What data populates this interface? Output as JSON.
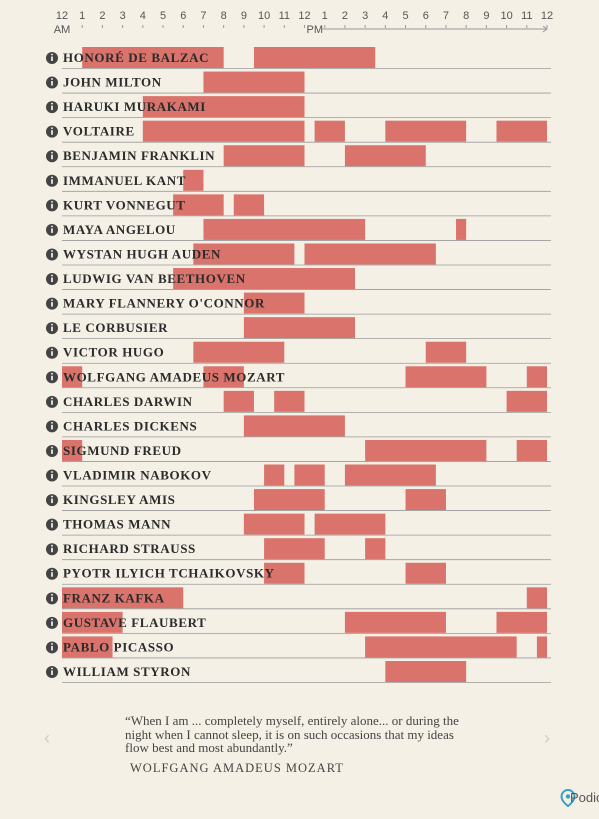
{
  "chart_data": {
    "type": "timeline",
    "color": "#d9736b",
    "xlim": [
      0,
      24
    ],
    "xticks": [
      {
        "value": 0,
        "label": "12"
      },
      {
        "value": 1,
        "label": "1"
      },
      {
        "value": 2,
        "label": "2"
      },
      {
        "value": 3,
        "label": "3"
      },
      {
        "value": 4,
        "label": "4"
      },
      {
        "value": 5,
        "label": "5"
      },
      {
        "value": 6,
        "label": "6"
      },
      {
        "value": 7,
        "label": "7"
      },
      {
        "value": 8,
        "label": "8"
      },
      {
        "value": 9,
        "label": "9"
      },
      {
        "value": 10,
        "label": "10"
      },
      {
        "value": 11,
        "label": "11"
      },
      {
        "value": 12,
        "label": "12"
      },
      {
        "value": 13,
        "label": "1"
      },
      {
        "value": 14,
        "label": "2"
      },
      {
        "value": 15,
        "label": "3"
      },
      {
        "value": 16,
        "label": "4"
      },
      {
        "value": 17,
        "label": "5"
      },
      {
        "value": 18,
        "label": "6"
      },
      {
        "value": 19,
        "label": "7"
      },
      {
        "value": 20,
        "label": "8"
      },
      {
        "value": 21,
        "label": "9"
      },
      {
        "value": 22,
        "label": "10"
      },
      {
        "value": 23,
        "label": "11"
      },
      {
        "value": 24,
        "label": "12"
      }
    ],
    "am_label": "AM",
    "pm_label": "PM",
    "series": [
      {
        "name": "HONORÉ DE BALZAC",
        "segments": [
          [
            1,
            8
          ],
          [
            9.5,
            15.5
          ]
        ]
      },
      {
        "name": "JOHN MILTON",
        "segments": [
          [
            7,
            12
          ]
        ]
      },
      {
        "name": "HARUKI MURAKAMI",
        "segments": [
          [
            4,
            12
          ]
        ]
      },
      {
        "name": "VOLTAIRE",
        "segments": [
          [
            4,
            12
          ],
          [
            12.5,
            14
          ],
          [
            16,
            20
          ],
          [
            21.5,
            24
          ]
        ]
      },
      {
        "name": "BENJAMIN FRANKLIN",
        "segments": [
          [
            8,
            12
          ],
          [
            14,
            18
          ]
        ]
      },
      {
        "name": "IMMANUEL KANT",
        "segments": [
          [
            6,
            7
          ]
        ]
      },
      {
        "name": "KURT VONNEGUT",
        "segments": [
          [
            5.5,
            8
          ],
          [
            8.5,
            10
          ]
        ]
      },
      {
        "name": "MAYA ANGELOU",
        "segments": [
          [
            7,
            15
          ],
          [
            19.5,
            20
          ]
        ]
      },
      {
        "name": "WYSTAN HUGH AUDEN",
        "segments": [
          [
            6.5,
            11.5
          ],
          [
            12,
            18.5
          ]
        ]
      },
      {
        "name": "LUDWIG VAN BEETHOVEN",
        "segments": [
          [
            5.5,
            14.5
          ]
        ]
      },
      {
        "name": "MARY FLANNERY O'CONNOR",
        "segments": [
          [
            9,
            12
          ]
        ]
      },
      {
        "name": "LE CORBUSIER",
        "segments": [
          [
            9,
            14.5
          ]
        ]
      },
      {
        "name": "VICTOR HUGO",
        "segments": [
          [
            6.5,
            11
          ],
          [
            18,
            20
          ]
        ]
      },
      {
        "name": "WOLFGANG AMADEUS MOZART",
        "segments": [
          [
            0,
            1
          ],
          [
            7,
            9
          ],
          [
            17,
            21
          ],
          [
            23,
            24
          ]
        ]
      },
      {
        "name": "CHARLES DARWIN",
        "segments": [
          [
            8,
            9.5
          ],
          [
            10.5,
            12
          ],
          [
            22,
            24
          ]
        ]
      },
      {
        "name": "CHARLES DICKENS",
        "segments": [
          [
            9,
            14
          ]
        ]
      },
      {
        "name": "SIGMUND FREUD",
        "segments": [
          [
            0,
            1
          ],
          [
            15,
            21
          ],
          [
            22.5,
            24
          ]
        ]
      },
      {
        "name": "VLADIMIR NABOKOV",
        "segments": [
          [
            10,
            11
          ],
          [
            11.5,
            13
          ],
          [
            14,
            18.5
          ]
        ]
      },
      {
        "name": "KINGSLEY AMIS",
        "segments": [
          [
            9.5,
            13
          ],
          [
            17,
            19
          ]
        ]
      },
      {
        "name": "THOMAS MANN",
        "segments": [
          [
            9,
            12
          ],
          [
            12.5,
            16
          ]
        ]
      },
      {
        "name": "RICHARD STRAUSS",
        "segments": [
          [
            10,
            13
          ],
          [
            15,
            16
          ]
        ]
      },
      {
        "name": "PYOTR ILYICH TCHAIKOVSKY",
        "segments": [
          [
            10,
            12
          ],
          [
            17,
            19
          ]
        ]
      },
      {
        "name": "FRANZ KAFKA",
        "segments": [
          [
            0,
            6
          ],
          [
            23,
            24
          ]
        ]
      },
      {
        "name": "GUSTAVE FLAUBERT",
        "segments": [
          [
            0,
            3
          ],
          [
            14,
            19
          ],
          [
            21.5,
            24
          ]
        ]
      },
      {
        "name": "PABLO PICASSO",
        "segments": [
          [
            0,
            2.5
          ],
          [
            15,
            22.5
          ],
          [
            23.5,
            24
          ]
        ]
      },
      {
        "name": "WILLIAM STYRON",
        "segments": [
          [
            16,
            20
          ]
        ]
      }
    ]
  },
  "quote": {
    "text": "“When I am ... completely myself, entirely alone... or during the night when I cannot sleep, it is on such occasions that my ideas flow best and most abundantly.”",
    "author": "WOLFGANG AMADEUS MOZART"
  },
  "brand": "Podio"
}
